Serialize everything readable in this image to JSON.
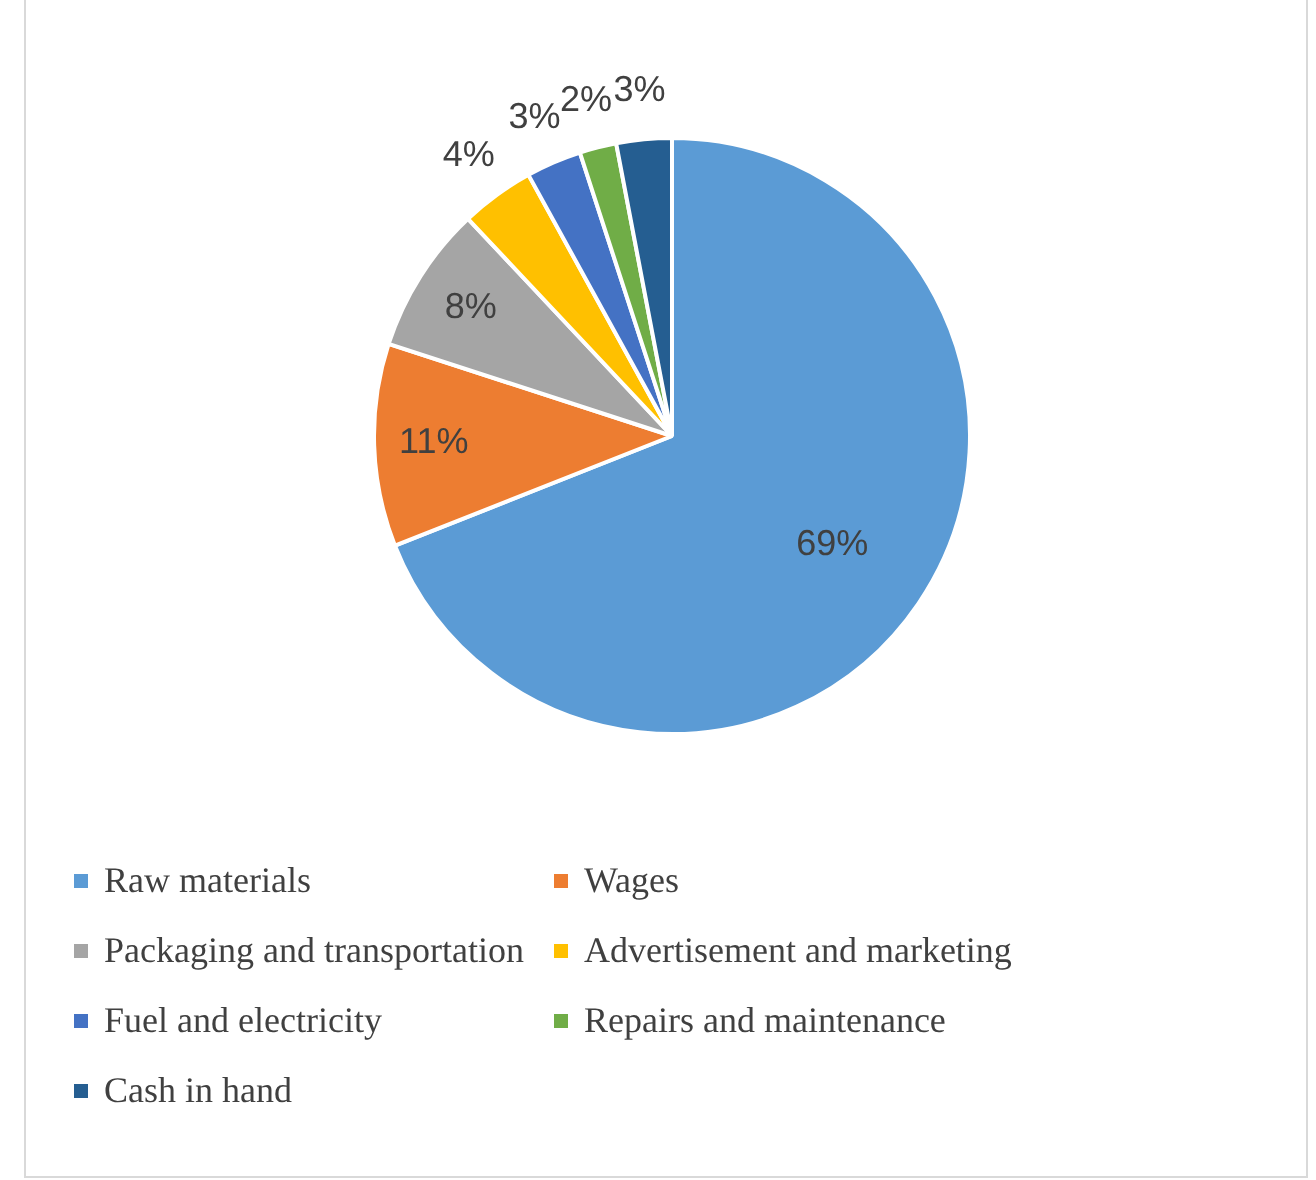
{
  "chart_data": {
    "type": "pie",
    "categories": [
      "Raw materials",
      "Wages",
      "Packaging and transportation",
      "Advertisement and marketing",
      "Fuel and electricity",
      "Repairs and maintenance",
      "Cash in hand"
    ],
    "values": [
      69,
      11,
      8,
      4,
      3,
      2,
      3
    ],
    "colors": [
      "#5b9bd5",
      "#ed7d31",
      "#a5a5a5",
      "#ffc000",
      "#4472c4",
      "#70ad47",
      "#255e91"
    ],
    "value_labels": [
      "69%",
      "11%",
      "8%",
      "4%",
      "3%",
      "2%",
      "3%"
    ],
    "legend": "bottom"
  }
}
